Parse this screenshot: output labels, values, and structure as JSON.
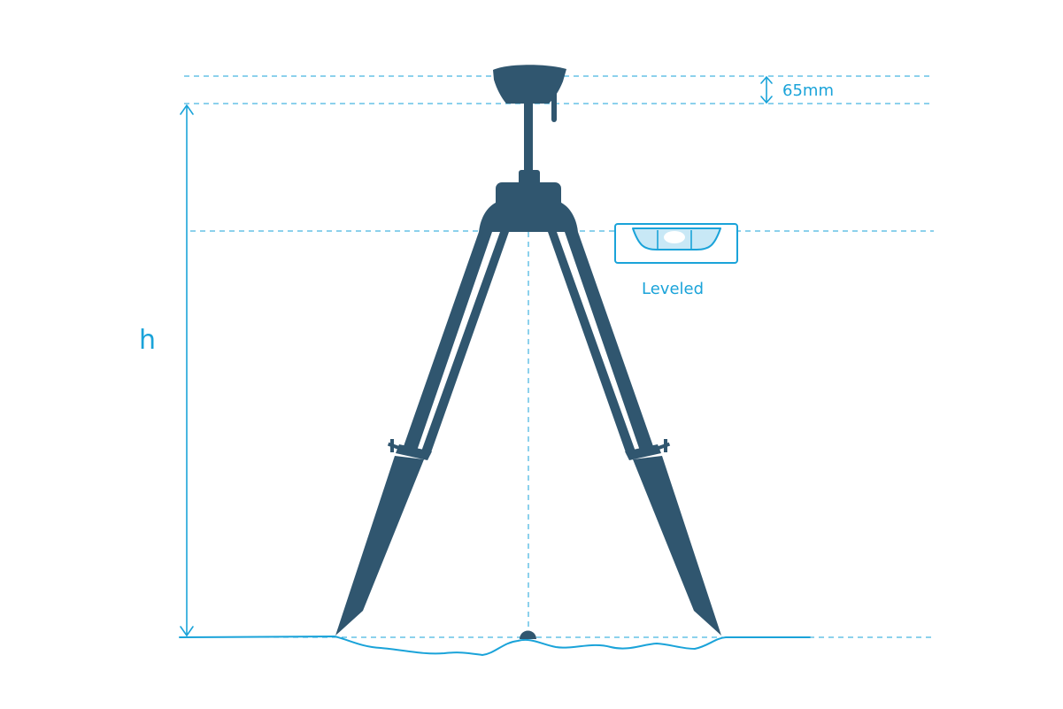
{
  "labels": {
    "height": "h",
    "antenna_offset": "65mm",
    "level_status": "Leveled"
  },
  "colors": {
    "accent": "#1aa3d9",
    "tripod": "#30566f",
    "level_fill": "#c8e8f6",
    "background": "#ffffff"
  },
  "icons": {
    "antenna": "gnss-antenna-icon",
    "tripod": "tripod-icon",
    "level": "bubble-level-icon",
    "ground_mark": "survey-marker-icon"
  }
}
